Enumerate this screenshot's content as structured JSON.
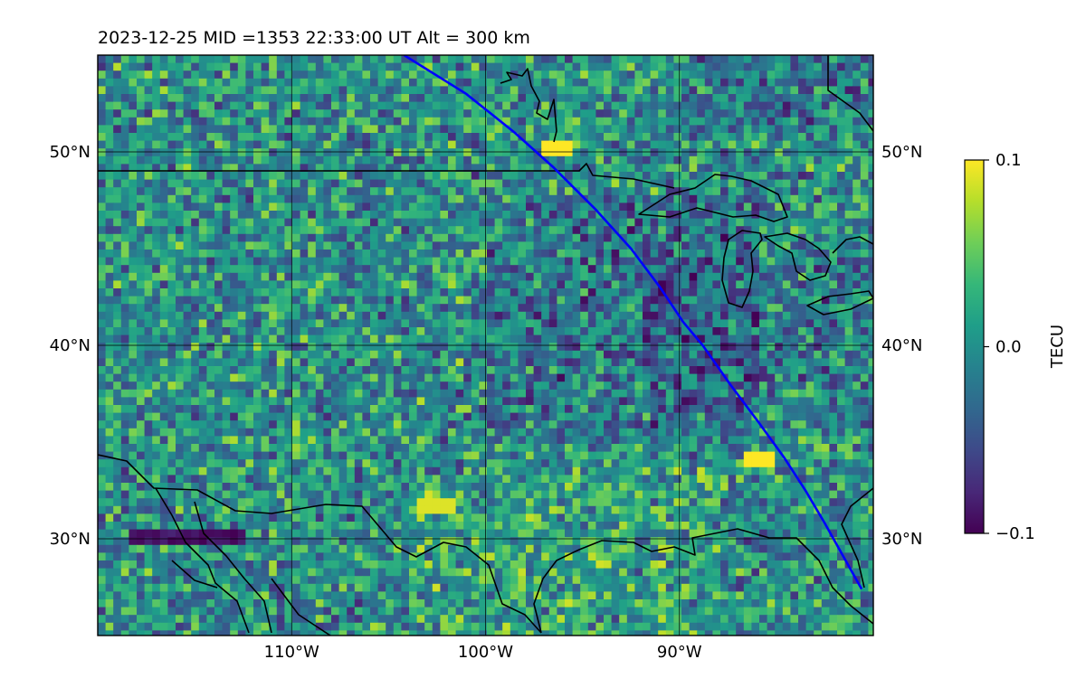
{
  "chart_data": {
    "type": "heatmap",
    "title": "2023-12-25  MID =1353    22:33:00  UT  Alt = 300 km",
    "projection": "plate carree map",
    "x_range": [
      -120,
      -80
    ],
    "y_range": [
      25,
      55
    ],
    "x_ticks": [
      {
        "value": -110,
        "label": "110°W"
      },
      {
        "value": -100,
        "label": "100°W"
      },
      {
        "value": -90,
        "label": "90°W"
      }
    ],
    "y_ticks": [
      {
        "value": 30,
        "label": "30°N"
      },
      {
        "value": 40,
        "label": "40°N"
      },
      {
        "value": 50,
        "label": "50°N"
      }
    ],
    "grid": true,
    "colormap": "viridis",
    "colorbar": {
      "label": "TECU",
      "min": -0.1,
      "max": 0.1,
      "ticks": [
        {
          "value": 0.1,
          "label": "0.1"
        },
        {
          "value": 0.0,
          "label": "0.0"
        },
        {
          "value": -0.1,
          "label": "−0.1"
        }
      ]
    },
    "track": {
      "color": "#0000ff",
      "points": [
        [
          -104.2,
          55
        ],
        [
          -101,
          53
        ],
        [
          -98.5,
          51
        ],
        [
          -96.5,
          49.2
        ],
        [
          -94.3,
          47
        ],
        [
          -92.5,
          45
        ],
        [
          -91,
          43
        ],
        [
          -89.8,
          41.2
        ],
        [
          -88.8,
          40
        ],
        [
          -87.4,
          38
        ],
        [
          -85.9,
          36
        ],
        [
          -84.6,
          34.2
        ],
        [
          -83.5,
          32.5
        ],
        [
          -82.5,
          30.8
        ],
        [
          -81.5,
          29
        ],
        [
          -80.6,
          27.4
        ]
      ]
    },
    "features": {
      "coastline_color": "#000000",
      "description_values": {
        "low_anomaly_region": {
          "lon": [
            -118.5,
            -112.5
          ],
          "lat": [
            29.8,
            30.6
          ],
          "value": -0.1
        },
        "high_anomaly_spots": [
          {
            "lon": -96.5,
            "lat": 50.5,
            "value": 0.1
          },
          {
            "lon": -86,
            "lat": 34.2,
            "value": 0.1
          },
          {
            "lon": -102.7,
            "lat": 32.0,
            "value": 0.09
          }
        ]
      }
    }
  },
  "colors": {
    "viridis_stops": [
      "#440154",
      "#482878",
      "#3e4989",
      "#31688e",
      "#26828e",
      "#1f9e89",
      "#35b779",
      "#6ece58",
      "#b5de2b",
      "#fde725"
    ],
    "grid": "#000000",
    "track": "#0000ff"
  }
}
